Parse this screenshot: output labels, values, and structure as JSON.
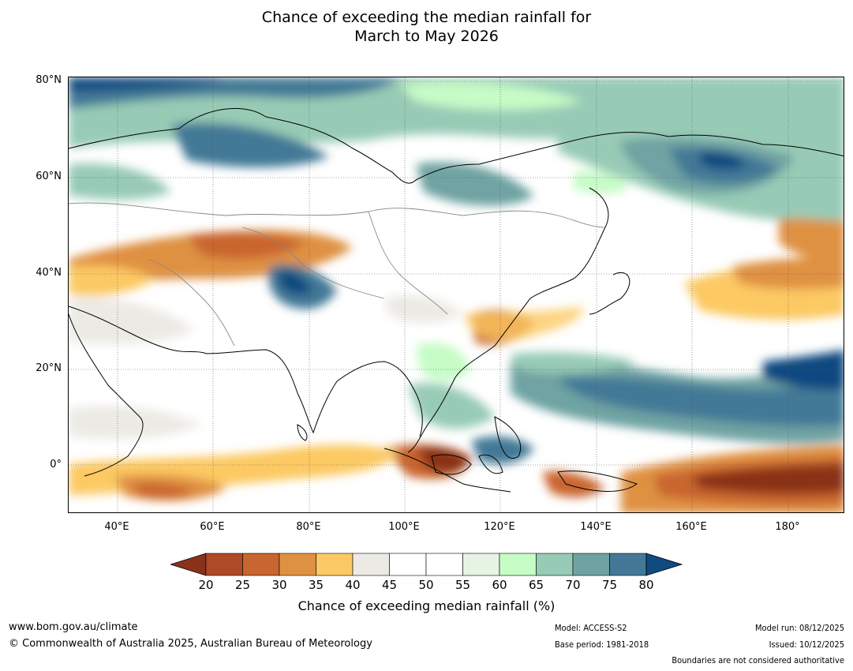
{
  "title": {
    "line1": "Chance of exceeding the median rainfall for",
    "line2": "March to May 2026"
  },
  "map": {
    "lat_labels": [
      "80°N",
      "60°N",
      "40°N",
      "20°N",
      "0°"
    ],
    "lon_labels": [
      "40°E",
      "60°E",
      "80°E",
      "100°E",
      "120°E",
      "140°E",
      "160°E",
      "180°"
    ]
  },
  "colorbar": {
    "ticks": [
      "20",
      "25",
      "30",
      "35",
      "40",
      "45",
      "50",
      "55",
      "60",
      "65",
      "70",
      "75",
      "80"
    ],
    "colors": [
      "#8a3119",
      "#ae4a26",
      "#c9652f",
      "#df9142",
      "#fcc964",
      "#eceae4",
      "#ffffff",
      "#ffffff",
      "#e6f4e4",
      "#c6fcc6",
      "#98cbb6",
      "#6fa3a3",
      "#437996",
      "#0f4a80"
    ],
    "title": "Chance of exceeding median rainfall (%)"
  },
  "footer": {
    "website": "www.bom.gov.au/climate",
    "copyright": "© Commonwealth of Australia 2025, Australian Bureau of Meteorology",
    "model": "Model: ACCESS-S2",
    "base_period": "Base period: 1981-2018",
    "model_run": "Model run: 08/12/2025",
    "issued": "Issued: 10/12/2025",
    "boundaries": "Boundaries are not considered authoritative"
  }
}
